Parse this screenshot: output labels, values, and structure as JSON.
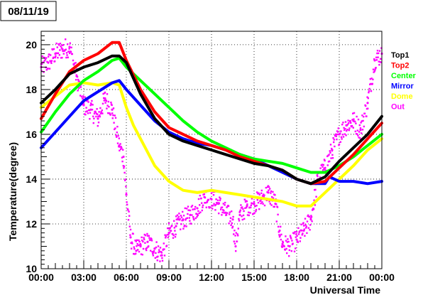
{
  "title": "08/11/19",
  "chart_data": {
    "type": "line",
    "title": "08/11/19",
    "xlabel": "Universal Time",
    "ylabel": "Temperature(degree)",
    "xlim": [
      0,
      24
    ],
    "ylim": [
      10,
      20.6
    ],
    "grid": true,
    "legend_position": "right",
    "x_ticks": [
      {
        "value": 0,
        "label": "00:00"
      },
      {
        "value": 3,
        "label": "03:00"
      },
      {
        "value": 6,
        "label": "06:00"
      },
      {
        "value": 9,
        "label": "09:00"
      },
      {
        "value": 12,
        "label": "12:00"
      },
      {
        "value": 15,
        "label": "15:00"
      },
      {
        "value": 18,
        "label": "18:00"
      },
      {
        "value": 21,
        "label": "21:00"
      },
      {
        "value": 24,
        "label": "00:00"
      }
    ],
    "y_ticks": [
      {
        "value": 10,
        "label": "10"
      },
      {
        "value": 12,
        "label": "12"
      },
      {
        "value": 14,
        "label": "14"
      },
      {
        "value": 16,
        "label": "16"
      },
      {
        "value": 18,
        "label": "18"
      },
      {
        "value": 20,
        "label": "20"
      }
    ],
    "series": [
      {
        "name": "Top1",
        "color": "#000000",
        "style": "line",
        "x": [
          0,
          1,
          2,
          3,
          4,
          5,
          5.5,
          6,
          7,
          8,
          9,
          10,
          11,
          12,
          13,
          14,
          15,
          16,
          17,
          18,
          19,
          20,
          21,
          22,
          23,
          24
        ],
        "y": [
          17.4,
          18.0,
          18.7,
          19.0,
          19.2,
          19.5,
          19.5,
          19.2,
          17.8,
          16.7,
          16.0,
          15.7,
          15.5,
          15.3,
          15.1,
          14.9,
          14.7,
          14.6,
          14.4,
          14.0,
          13.8,
          14.1,
          14.8,
          15.4,
          16.0,
          16.8
        ]
      },
      {
        "name": "Top2",
        "color": "#ff0000",
        "style": "line",
        "x": [
          0,
          1,
          2,
          3,
          4,
          5,
          5.5,
          6,
          7,
          8,
          9,
          10,
          11,
          12,
          13,
          14,
          15,
          16,
          17,
          18,
          19,
          20,
          21,
          22,
          23,
          24
        ],
        "y": [
          16.7,
          17.8,
          18.8,
          19.3,
          19.6,
          20.1,
          20.1,
          19.3,
          18.0,
          17.0,
          16.3,
          16.0,
          15.7,
          15.5,
          15.3,
          15.0,
          14.8,
          14.6,
          14.4,
          14.0,
          13.8,
          13.9,
          14.5,
          15.1,
          15.8,
          16.5
        ]
      },
      {
        "name": "Center",
        "color": "#00ff00",
        "style": "line",
        "x": [
          0,
          1,
          2,
          3,
          4,
          5,
          5.5,
          6,
          7,
          8,
          9,
          10,
          11,
          12,
          13,
          14,
          15,
          16,
          17,
          18,
          19,
          20,
          21,
          22,
          23,
          24
        ],
        "y": [
          16.1,
          17.0,
          17.8,
          18.4,
          18.8,
          19.3,
          19.4,
          19.0,
          18.4,
          17.8,
          17.2,
          16.6,
          16.1,
          15.7,
          15.4,
          15.1,
          14.9,
          14.8,
          14.7,
          14.5,
          14.3,
          14.3,
          14.6,
          15.0,
          15.5,
          16.0
        ]
      },
      {
        "name": "Mirror",
        "color": "#0000ff",
        "style": "line",
        "x": [
          0,
          1,
          2,
          3,
          4,
          5,
          5.5,
          6,
          7,
          8,
          9,
          10,
          11,
          12,
          13,
          14,
          15,
          16,
          17,
          18,
          19,
          20,
          20.3,
          21,
          22,
          23,
          24
        ],
        "y": [
          15.4,
          16.1,
          16.8,
          17.5,
          17.9,
          18.3,
          18.4,
          18.0,
          17.3,
          16.6,
          16.1,
          15.8,
          15.6,
          15.5,
          15.3,
          15.1,
          14.9,
          14.6,
          14.3,
          14.0,
          13.8,
          13.8,
          14.1,
          13.9,
          13.9,
          13.8,
          13.9
        ]
      },
      {
        "name": "Dome",
        "color": "#ffff00",
        "style": "line",
        "x": [
          0,
          1,
          2,
          3,
          4,
          5,
          5.5,
          6,
          6.5,
          7,
          8,
          9,
          10,
          11,
          12,
          13,
          14,
          15,
          16,
          17,
          18,
          19,
          20,
          21,
          22,
          23,
          24
        ],
        "y": [
          17.2,
          17.7,
          18.2,
          18.3,
          18.2,
          18.3,
          18.2,
          17.2,
          16.4,
          15.8,
          14.6,
          13.9,
          13.5,
          13.4,
          13.5,
          13.4,
          13.3,
          13.2,
          13.1,
          13.0,
          12.8,
          12.8,
          13.4,
          14.0,
          14.6,
          15.3,
          15.8
        ]
      },
      {
        "name": "Out",
        "color": "#ff00ff",
        "style": "points",
        "x": [
          0,
          0.5,
          1,
          1.5,
          2,
          2.5,
          3,
          3.5,
          4,
          4.5,
          5,
          5.5,
          5.8,
          6,
          6.3,
          6.7,
          7,
          7.5,
          8,
          8.5,
          9,
          9.5,
          10,
          10.5,
          11,
          11.5,
          12,
          12.5,
          13,
          13.5,
          13.7,
          14,
          14.5,
          15,
          15.5,
          16,
          16.5,
          16.8,
          17,
          17.5,
          18,
          18.5,
          19,
          19.5,
          20,
          20.5,
          21,
          21.5,
          22,
          22.5,
          23,
          23.5,
          24
        ],
        "y": [
          19.0,
          19.2,
          19.6,
          19.8,
          19.9,
          18.6,
          17.3,
          17.1,
          16.7,
          17.6,
          17.1,
          15.5,
          15.0,
          13.3,
          11.4,
          10.8,
          11.0,
          11.2,
          10.9,
          10.6,
          11.6,
          11.9,
          12.2,
          12.4,
          12.7,
          13.2,
          13.1,
          12.9,
          12.5,
          12.2,
          11.0,
          12.4,
          12.8,
          12.9,
          13.1,
          13.4,
          12.9,
          11.7,
          11.1,
          11.0,
          11.3,
          11.7,
          12.2,
          14.0,
          14.5,
          15.3,
          16.0,
          16.4,
          16.6,
          16.2,
          17.4,
          19.3,
          19.6
        ]
      }
    ]
  }
}
